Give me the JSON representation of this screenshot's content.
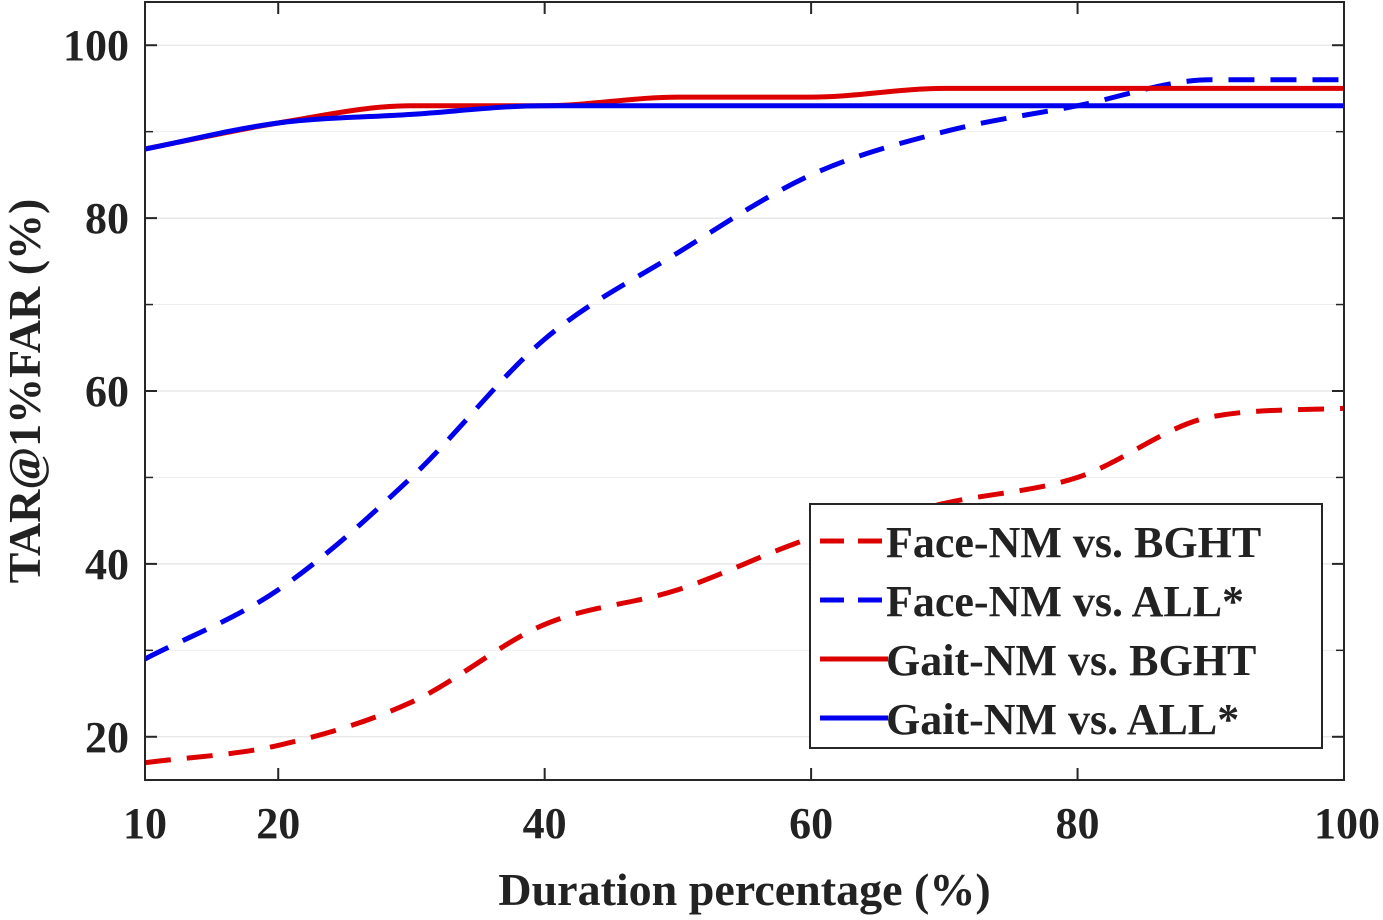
{
  "chart_data": {
    "type": "line",
    "title": "",
    "xlabel": "Duration percentage (%)",
    "ylabel": "TAR@1%FAR (%)",
    "xlim": [
      10,
      100
    ],
    "ylim": [
      15,
      105
    ],
    "xticks": [
      10,
      20,
      40,
      60,
      80,
      100
    ],
    "yticks": [
      20,
      40,
      60,
      80,
      100
    ],
    "x_ticklabels": [
      "10",
      "20",
      "40",
      "60",
      "80",
      "100"
    ],
    "y_ticklabels": [
      "20",
      "40",
      "60",
      "80",
      "100"
    ],
    "grid": true,
    "legend_position": "bottom-right",
    "x": [
      10,
      20,
      30,
      40,
      50,
      60,
      70,
      80,
      90,
      100
    ],
    "series": [
      {
        "name": "Face-NM vs. BGHT",
        "color": "#dd0000",
        "dash": "dashed",
        "values": [
          17,
          19,
          24,
          33,
          37,
          43,
          47,
          50,
          57,
          58
        ]
      },
      {
        "name": "Face-NM vs. ALL*",
        "color": "#0000ee",
        "dash": "dashed",
        "values": [
          29,
          37,
          50,
          66,
          76,
          85,
          90,
          93,
          96,
          96
        ]
      },
      {
        "name": "Gait-NM vs. BGHT",
        "color": "#dd0000",
        "dash": "solid",
        "values": [
          88,
          91,
          93,
          93,
          94,
          94,
          95,
          95,
          95,
          95
        ]
      },
      {
        "name": "Gait-NM vs. ALL*",
        "color": "#0000ee",
        "dash": "solid",
        "values": [
          88,
          91,
          92,
          93,
          93,
          93,
          93,
          93,
          93,
          93
        ]
      }
    ]
  }
}
